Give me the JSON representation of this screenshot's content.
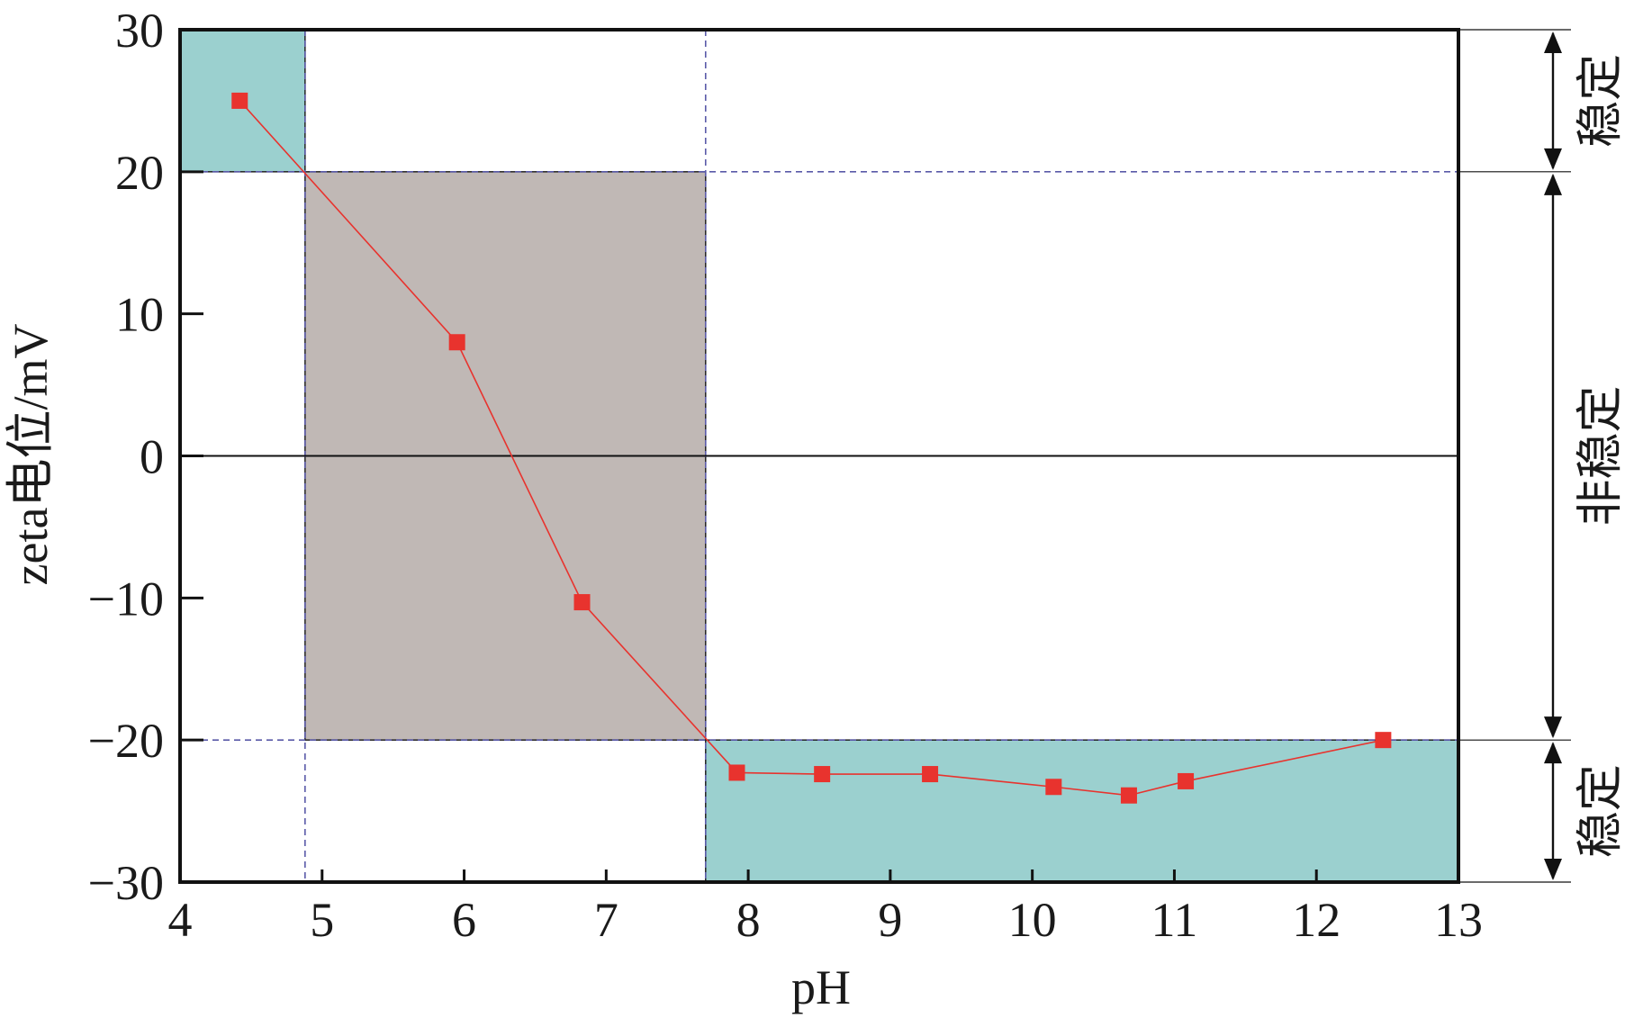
{
  "chart_data": {
    "type": "line",
    "xlabel": "pH",
    "ylabel": "zeta电位/mV",
    "xlim": [
      4,
      13
    ],
    "ylim": [
      -30,
      30
    ],
    "x_ticks": [
      "4",
      "5",
      "6",
      "7",
      "8",
      "9",
      "10",
      "11",
      "12",
      "13"
    ],
    "y_ticks": [
      "30",
      "20",
      "10",
      "0",
      "−10",
      "−20",
      "−30"
    ],
    "series": [
      {
        "x": [
          4.42,
          5.95,
          6.83,
          7.92,
          8.52,
          9.28,
          10.15,
          10.68,
          11.08,
          12.47
        ],
        "y": [
          25.0,
          8.0,
          -10.3,
          -22.3,
          -22.4,
          -22.4,
          -23.3,
          -23.9,
          -22.9,
          -20.0
        ],
        "color": "#e8332e",
        "marker": "square"
      }
    ],
    "regions": [
      {
        "x": [
          4,
          4.88
        ],
        "y": [
          20,
          30
        ],
        "color": "#9bd0cf"
      },
      {
        "x": [
          4.88,
          7.7
        ],
        "y": [
          -20,
          20
        ],
        "color": "#c0b8b5"
      },
      {
        "x": [
          7.7,
          13
        ],
        "y": [
          -30,
          -20
        ],
        "color": "#9bd0cf"
      }
    ],
    "reference_lines": {
      "vertical_x": [
        4.88,
        7.7
      ],
      "horizontal_y": [
        20,
        -20
      ],
      "zero_line_y": 0
    },
    "zones": [
      {
        "label": "稳定",
        "y_range": [
          20,
          30
        ]
      },
      {
        "label": "非稳定",
        "y_range": [
          -20,
          20
        ]
      },
      {
        "label": "稳定",
        "y_range": [
          -30,
          -20
        ]
      }
    ]
  }
}
